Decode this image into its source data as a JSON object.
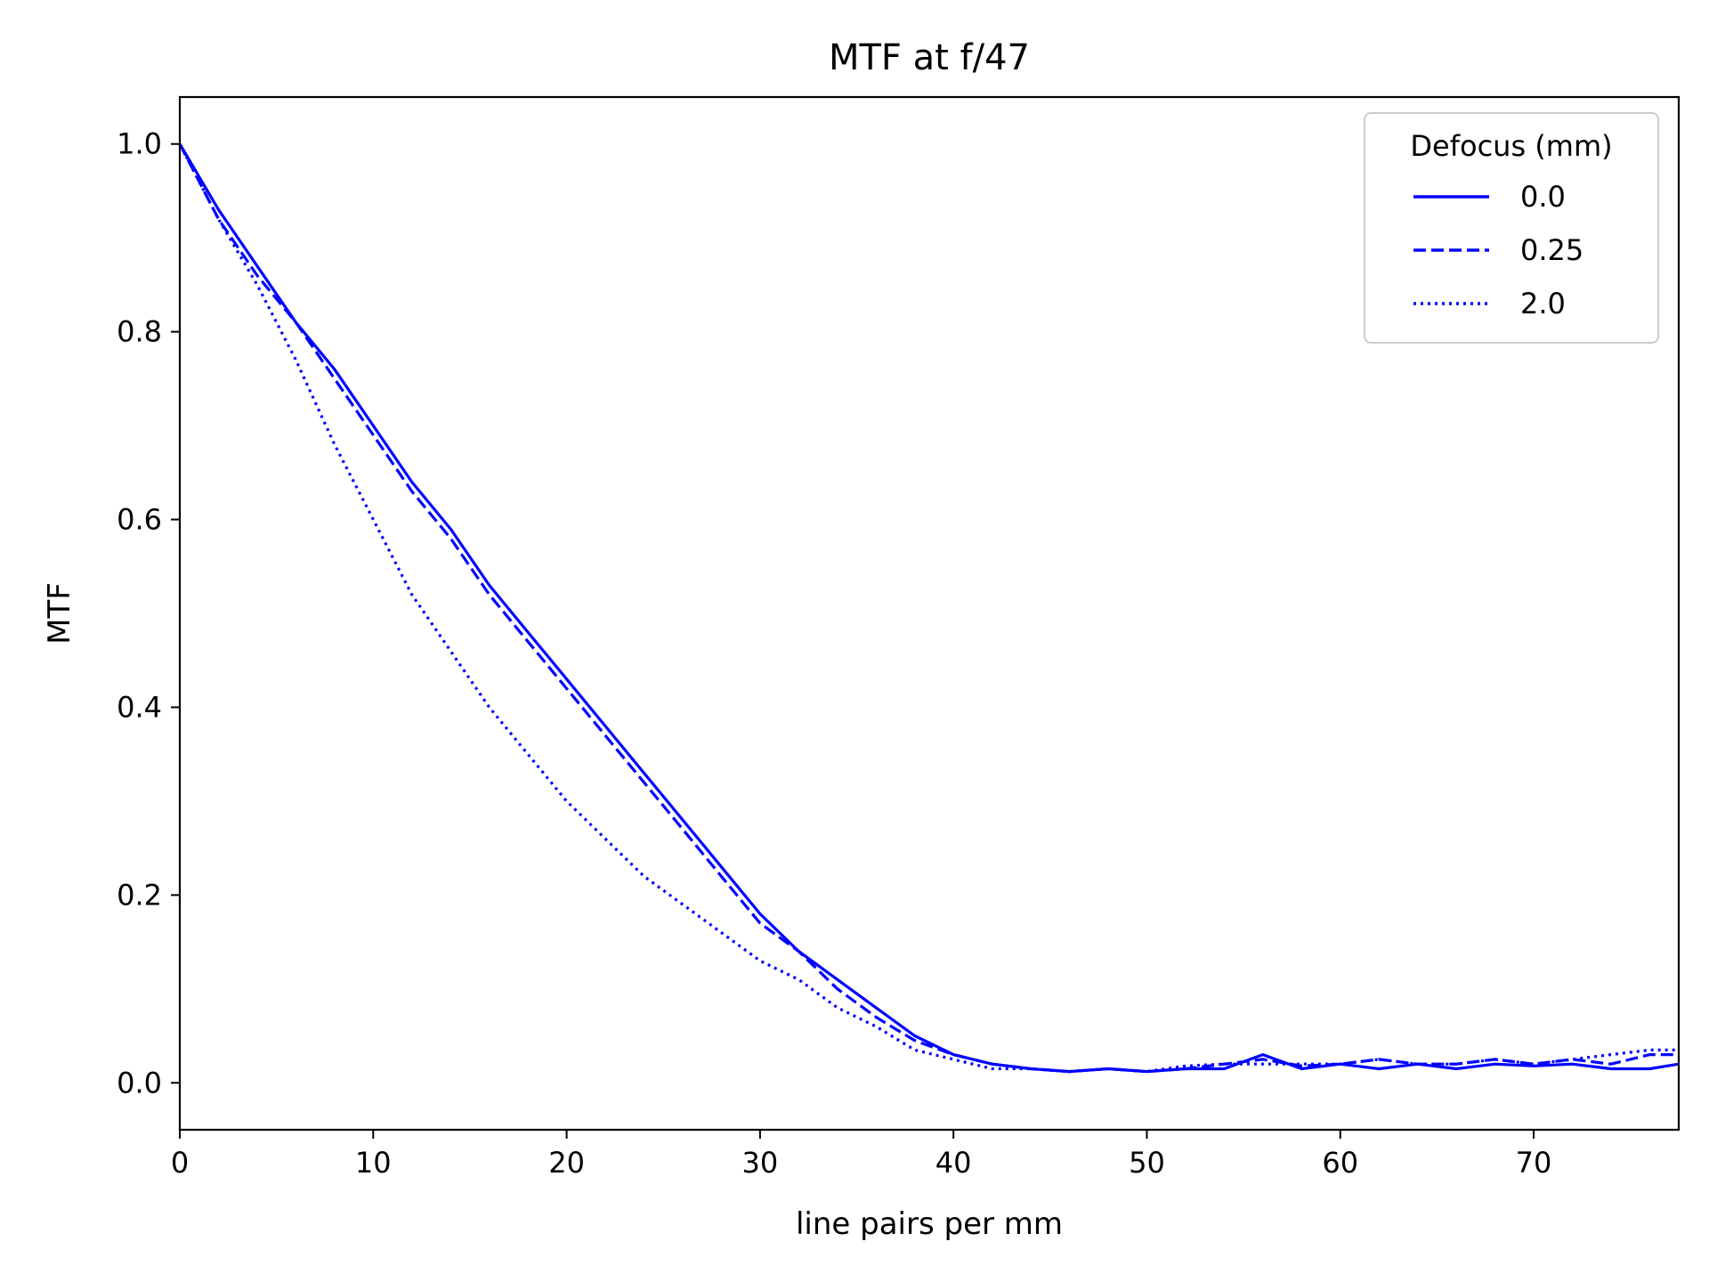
{
  "chart_data": {
    "type": "line",
    "title": "MTF at f/47",
    "xlabel": "line pairs per mm",
    "ylabel": "MTF",
    "xlim": [
      0,
      77.5
    ],
    "ylim": [
      -0.05,
      1.05
    ],
    "xticks": [
      0,
      10,
      20,
      30,
      40,
      50,
      60,
      70
    ],
    "xtick_labels": [
      "0",
      "10",
      "20",
      "30",
      "40",
      "50",
      "60",
      "70"
    ],
    "yticks": [
      0.0,
      0.2,
      0.4,
      0.6,
      0.8,
      1.0
    ],
    "ytick_labels": [
      "0.0",
      "0.2",
      "0.4",
      "0.6",
      "0.8",
      "1.0"
    ],
    "grid": false,
    "legend": {
      "title": "Defocus (mm)",
      "placement": "top-right",
      "entries": [
        "0.0",
        "0.25",
        "2.0"
      ]
    },
    "series": [
      {
        "name": "0.0",
        "color": "#0000ff",
        "linestyle": "solid",
        "x": [
          0,
          2,
          4,
          6,
          8,
          10,
          12,
          14,
          16,
          18,
          20,
          22,
          24,
          26,
          28,
          30,
          32,
          34,
          36,
          38,
          40,
          42,
          44,
          46,
          48,
          50,
          52,
          54,
          56,
          58,
          60,
          62,
          64,
          66,
          68,
          70,
          72,
          74,
          76,
          77.5
        ],
        "y": [
          1.0,
          0.93,
          0.87,
          0.81,
          0.76,
          0.7,
          0.64,
          0.59,
          0.53,
          0.48,
          0.43,
          0.38,
          0.33,
          0.28,
          0.23,
          0.18,
          0.14,
          0.11,
          0.08,
          0.05,
          0.03,
          0.02,
          0.015,
          0.012,
          0.015,
          0.012,
          0.015,
          0.015,
          0.03,
          0.015,
          0.02,
          0.015,
          0.02,
          0.015,
          0.02,
          0.018,
          0.02,
          0.015,
          0.015,
          0.02
        ]
      },
      {
        "name": "0.25",
        "color": "#0000ff",
        "linestyle": "dashed",
        "x": [
          0,
          2,
          4,
          6,
          8,
          10,
          12,
          14,
          16,
          18,
          20,
          22,
          24,
          26,
          28,
          30,
          32,
          34,
          36,
          38,
          40,
          42,
          44,
          46,
          48,
          50,
          52,
          54,
          56,
          58,
          60,
          62,
          64,
          66,
          68,
          70,
          72,
          74,
          76,
          77.5
        ],
        "y": [
          1.0,
          0.92,
          0.86,
          0.81,
          0.75,
          0.69,
          0.63,
          0.58,
          0.52,
          0.47,
          0.42,
          0.37,
          0.32,
          0.27,
          0.22,
          0.17,
          0.14,
          0.1,
          0.07,
          0.045,
          0.03,
          0.02,
          0.015,
          0.012,
          0.015,
          0.012,
          0.015,
          0.02,
          0.025,
          0.018,
          0.02,
          0.025,
          0.02,
          0.02,
          0.025,
          0.02,
          0.025,
          0.02,
          0.03,
          0.03
        ]
      },
      {
        "name": "2.0",
        "color": "#0000ff",
        "linestyle": "dotted",
        "x": [
          0,
          2,
          4,
          6,
          8,
          10,
          12,
          14,
          16,
          18,
          20,
          22,
          24,
          26,
          28,
          30,
          32,
          34,
          36,
          38,
          40,
          42,
          44,
          46,
          48,
          50,
          52,
          54,
          56,
          58,
          60,
          62,
          64,
          66,
          68,
          70,
          72,
          74,
          76,
          77.5
        ],
        "y": [
          1.0,
          0.92,
          0.85,
          0.77,
          0.68,
          0.6,
          0.52,
          0.46,
          0.4,
          0.35,
          0.3,
          0.26,
          0.22,
          0.19,
          0.16,
          0.13,
          0.11,
          0.08,
          0.06,
          0.035,
          0.025,
          0.015,
          0.015,
          0.012,
          0.015,
          0.012,
          0.018,
          0.02,
          0.02,
          0.02,
          0.02,
          0.025,
          0.02,
          0.02,
          0.025,
          0.02,
          0.025,
          0.03,
          0.035,
          0.035
        ]
      }
    ]
  }
}
